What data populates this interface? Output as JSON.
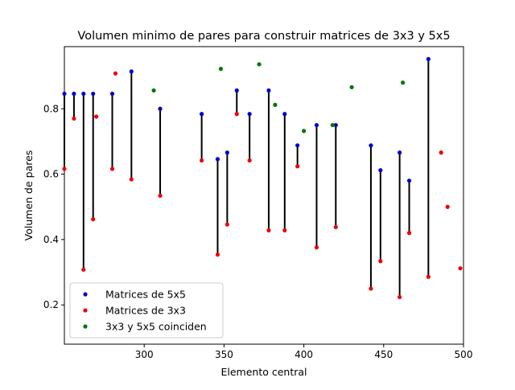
{
  "chart_data": {
    "type": "scatter",
    "title": "Volumen minimo de pares para construir matrices de 3x3 y 5x5",
    "xlabel": "Elemento central",
    "ylabel": "Volumen de pares",
    "xlim": [
      250,
      500
    ],
    "ylim": [
      0.08,
      0.99
    ],
    "x_ticks": [
      300,
      350,
      400,
      450,
      500
    ],
    "y_ticks": [
      0.2,
      0.4,
      0.6,
      0.8
    ],
    "x_tick_labels": [
      "300",
      "350",
      "400",
      "450",
      "500"
    ],
    "y_tick_labels": [
      "0.2",
      "0.4",
      "0.6",
      "0.8"
    ],
    "grid": false,
    "legend_position": "lower-left",
    "series": [
      {
        "name": "Matrices de 5x5",
        "color": "#0000cc",
        "points": [
          [
            250,
            0.846
          ],
          [
            256,
            0.846
          ],
          [
            262,
            0.846
          ],
          [
            268,
            0.846
          ],
          [
            280,
            0.846
          ],
          [
            292,
            0.914
          ],
          [
            310,
            0.8
          ],
          [
            336,
            0.784
          ],
          [
            346,
            0.646
          ],
          [
            352,
            0.666
          ],
          [
            358,
            0.856
          ],
          [
            366,
            0.784
          ],
          [
            378,
            0.856
          ],
          [
            388,
            0.784
          ],
          [
            396,
            0.688
          ],
          [
            408,
            0.75
          ],
          [
            420,
            0.75
          ],
          [
            442,
            0.688
          ],
          [
            448,
            0.612
          ],
          [
            460,
            0.666
          ],
          [
            466,
            0.58
          ],
          [
            478,
            0.952
          ]
        ]
      },
      {
        "name": "Matrices de 3x3",
        "color": "#ee0000",
        "points": [
          [
            250,
            0.616
          ],
          [
            256,
            0.77
          ],
          [
            262,
            0.308
          ],
          [
            268,
            0.462
          ],
          [
            270,
            0.776
          ],
          [
            280,
            0.616
          ],
          [
            282,
            0.908
          ],
          [
            292,
            0.584
          ],
          [
            310,
            0.534
          ],
          [
            336,
            0.642
          ],
          [
            346,
            0.354
          ],
          [
            352,
            0.446
          ],
          [
            358,
            0.784
          ],
          [
            366,
            0.642
          ],
          [
            378,
            0.428
          ],
          [
            388,
            0.428
          ],
          [
            396,
            0.624
          ],
          [
            408,
            0.376
          ],
          [
            420,
            0.438
          ],
          [
            442,
            0.25
          ],
          [
            448,
            0.334
          ],
          [
            460,
            0.224
          ],
          [
            466,
            0.42
          ],
          [
            478,
            0.286
          ],
          [
            486,
            0.666
          ],
          [
            490,
            0.5
          ],
          [
            498,
            0.312
          ]
        ]
      },
      {
        "name": "3x3 y 5x5 coinciden",
        "color": "#007700",
        "points": [
          [
            306,
            0.856
          ],
          [
            348,
            0.922
          ],
          [
            372,
            0.936
          ],
          [
            382,
            0.812
          ],
          [
            400,
            0.732
          ],
          [
            418,
            0.75
          ],
          [
            430,
            0.866
          ],
          [
            462,
            0.88
          ]
        ]
      }
    ],
    "connectors": [
      [
        250,
        0.846,
        0.616
      ],
      [
        256,
        0.846,
        0.77
      ],
      [
        262,
        0.846,
        0.308
      ],
      [
        268,
        0.846,
        0.462
      ],
      [
        280,
        0.846,
        0.616
      ],
      [
        292,
        0.914,
        0.584
      ],
      [
        310,
        0.8,
        0.534
      ],
      [
        336,
        0.784,
        0.642
      ],
      [
        346,
        0.646,
        0.354
      ],
      [
        352,
        0.666,
        0.446
      ],
      [
        358,
        0.856,
        0.784
      ],
      [
        366,
        0.784,
        0.642
      ],
      [
        378,
        0.856,
        0.428
      ],
      [
        388,
        0.784,
        0.428
      ],
      [
        396,
        0.688,
        0.624
      ],
      [
        408,
        0.75,
        0.376
      ],
      [
        420,
        0.75,
        0.438
      ],
      [
        442,
        0.688,
        0.25
      ],
      [
        448,
        0.612,
        0.334
      ],
      [
        460,
        0.666,
        0.224
      ],
      [
        466,
        0.58,
        0.42
      ],
      [
        478,
        0.952,
        0.286
      ]
    ]
  }
}
